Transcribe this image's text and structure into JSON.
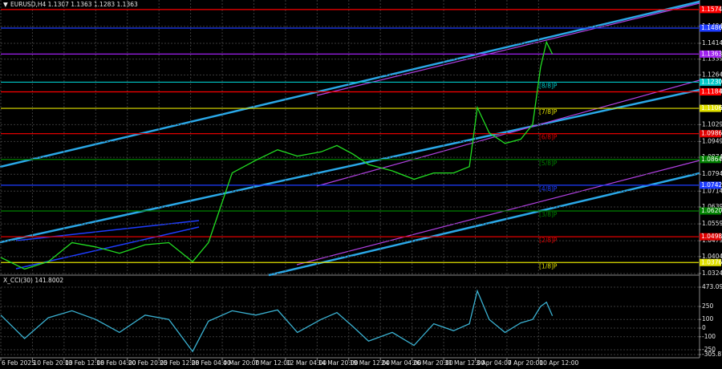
{
  "chart_data": [
    {
      "type": "line",
      "title": "EURUSD,H4 1.1307 1.1363 1.1283 1.1363",
      "x": [
        0,
        12,
        24,
        36,
        48,
        60,
        73,
        85,
        97,
        105,
        117,
        129,
        140,
        150,
        162,
        170,
        178,
        186,
        198,
        209,
        219,
        229,
        237,
        241,
        247,
        255,
        263,
        269,
        273,
        276,
        279
      ],
      "values": [
        1.04,
        1.0345,
        1.038,
        1.047,
        1.045,
        1.042,
        1.046,
        1.047,
        1.038,
        1.047,
        1.08,
        1.086,
        1.091,
        1.088,
        1.09,
        1.093,
        1.089,
        1.084,
        1.081,
        1.077,
        1.08,
        1.08,
        1.083,
        1.111,
        1.099,
        1.094,
        1.096,
        1.103,
        1.13,
        1.142,
        1.1363
      ],
      "color": "#22dd22",
      "xlim": [
        0,
        353
      ],
      "ylim": [
        1.032,
        1.1619
      ],
      "xticks": [
        {
          "value": 0,
          "label": "6 Feb 2025"
        },
        {
          "value": 16,
          "label": "10 Feb 20:00"
        },
        {
          "value": 32,
          "label": "13 Feb 12:00"
        },
        {
          "value": 48,
          "label": "18 Feb 04:00"
        },
        {
          "value": 64,
          "label": "20 Feb 20:00"
        },
        {
          "value": 80,
          "label": "25 Feb 12:00"
        },
        {
          "value": 96,
          "label": "28 Feb 04:00"
        },
        {
          "value": 112,
          "label": "4 Mar 20:00"
        },
        {
          "value": 128,
          "label": "7 Mar 12:00"
        },
        {
          "value": 144,
          "label": "12 Mar 04:00"
        },
        {
          "value": 160,
          "label": "14 Mar 20:00"
        },
        {
          "value": 176,
          "label": "19 Mar 12:00"
        },
        {
          "value": 192,
          "label": "24 Mar 04:00"
        },
        {
          "value": 208,
          "label": "26 Mar 20:00"
        },
        {
          "value": 224,
          "label": "31 Mar 12:00"
        },
        {
          "value": 240,
          "label": "3 Apr 04:00"
        },
        {
          "value": 256,
          "label": "7 Apr 20:00"
        },
        {
          "value": 272,
          "label": "10 Apr 12:00"
        }
      ],
      "yticks": [
        1.1494,
        1.1414,
        1.1339,
        1.1264,
        1.1184,
        1.1106,
        1.1029,
        1.0949,
        1.0874,
        1.0794,
        1.0714,
        1.0639,
        1.0559,
        1.0479,
        1.0404,
        1.0324
      ],
      "grid": true,
      "levels": [
        {
          "value": 1.1574,
          "label": "1.1574",
          "color": "#ff0000"
        },
        {
          "value": 1.1486,
          "label": "1.1486",
          "color": "#1e3cff"
        },
        {
          "value": 1.1363,
          "label": "1.1363",
          "color": "#a020f0"
        },
        {
          "value": 1.123,
          "label": "1.1230",
          "color": "#00c8c8",
          "murray": "[8/8]P"
        },
        {
          "value": 1.1184,
          "label": "1.1184",
          "color": "#ff0000"
        },
        {
          "value": 1.1106,
          "label": "1.1106",
          "color": "#e0e000",
          "murray": "[7/8]P"
        },
        {
          "value": 1.0986,
          "label": "1.0986",
          "color": "#e00000",
          "murray": "[6/8]P"
        },
        {
          "value": 1.0864,
          "label": "1.0864",
          "color": "#008000",
          "murray": "[5/8]P"
        },
        {
          "value": 1.0742,
          "label": "1.0742",
          "color": "#1e3cff",
          "murray": "[4/8]P"
        },
        {
          "value": 1.062,
          "label": "1.0620",
          "color": "#008000",
          "murray": "[3/8]P"
        },
        {
          "value": 1.0498,
          "label": "1.0498",
          "color": "#e00000",
          "murray": "[2/8]P"
        },
        {
          "value": 1.0376,
          "label": "1.0376",
          "color": "#e0e000",
          "murray": "[1/8]P"
        }
      ]
    },
    {
      "type": "line",
      "title": "X_CCI(30) 141.8002",
      "x": [
        0,
        12,
        24,
        36,
        48,
        60,
        73,
        85,
        97,
        105,
        117,
        129,
        140,
        150,
        162,
        170,
        178,
        186,
        198,
        209,
        219,
        229,
        237,
        241,
        247,
        255,
        263,
        269,
        273,
        276,
        279
      ],
      "values": [
        150,
        -120,
        120,
        200,
        100,
        -50,
        150,
        100,
        -270,
        80,
        200,
        150,
        210,
        -50,
        100,
        180,
        20,
        -150,
        -50,
        -200,
        50,
        -30,
        50,
        430,
        100,
        -50,
        60,
        100,
        250,
        300,
        141.8002
      ],
      "color": "#3ab0d0",
      "xlim": [
        0,
        353
      ],
      "ylim": [
        -305.8779,
        473.0924
      ],
      "yticks": [
        473.0924,
        250,
        100,
        0,
        -100,
        -250,
        -305.8779
      ],
      "grid": true
    }
  ]
}
